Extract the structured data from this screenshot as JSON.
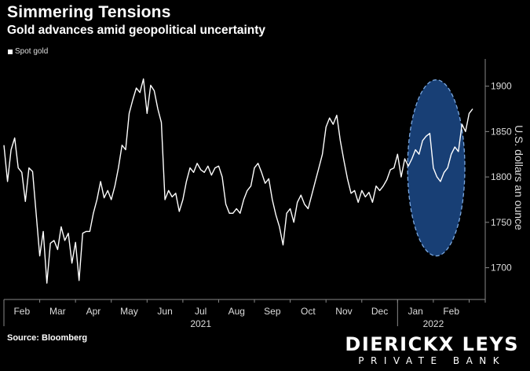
{
  "chart_data": {
    "type": "line",
    "title": "Simmering Tensions",
    "subtitle": "Gold advances amid geopolitical uncertainty",
    "ylabel": "U.S. dollars an ounce",
    "ylim": [
      1665,
      1930
    ],
    "yticks": [
      1700,
      1750,
      1800,
      1850,
      1900
    ],
    "xlim": [
      0,
      13.45
    ],
    "month_ticks": [
      {
        "label": "Feb",
        "x": 0.5
      },
      {
        "label": "Mar",
        "x": 1.5
      },
      {
        "label": "Apr",
        "x": 2.5
      },
      {
        "label": "May",
        "x": 3.5
      },
      {
        "label": "Jun",
        "x": 4.5
      },
      {
        "label": "Jul",
        "x": 5.5
      },
      {
        "label": "Aug",
        "x": 6.5
      },
      {
        "label": "Sep",
        "x": 7.5
      },
      {
        "label": "Oct",
        "x": 8.5
      },
      {
        "label": "Nov",
        "x": 9.5
      },
      {
        "label": "Dec",
        "x": 10.5
      },
      {
        "label": "Jan",
        "x": 11.5
      },
      {
        "label": "Feb",
        "x": 12.5
      }
    ],
    "year_labels": [
      {
        "label": "2021",
        "x": 5.5
      },
      {
        "label": "2022",
        "x": 12.0
      }
    ],
    "year_boundaries": [
      0,
      11
    ],
    "series": [
      {
        "name": "Spot gold",
        "points": [
          [
            0.0,
            1835
          ],
          [
            0.1,
            1795
          ],
          [
            0.2,
            1830
          ],
          [
            0.3,
            1843
          ],
          [
            0.4,
            1810
          ],
          [
            0.5,
            1805
          ],
          [
            0.6,
            1773
          ],
          [
            0.7,
            1810
          ],
          [
            0.8,
            1806
          ],
          [
            0.9,
            1760
          ],
          [
            1.0,
            1713
          ],
          [
            1.1,
            1740
          ],
          [
            1.2,
            1683
          ],
          [
            1.3,
            1727
          ],
          [
            1.4,
            1730
          ],
          [
            1.5,
            1720
          ],
          [
            1.6,
            1745
          ],
          [
            1.7,
            1730
          ],
          [
            1.8,
            1738
          ],
          [
            1.9,
            1705
          ],
          [
            2.0,
            1728
          ],
          [
            2.1,
            1686
          ],
          [
            2.2,
            1738
          ],
          [
            2.3,
            1740
          ],
          [
            2.4,
            1740
          ],
          [
            2.5,
            1760
          ],
          [
            2.6,
            1775
          ],
          [
            2.7,
            1795
          ],
          [
            2.8,
            1777
          ],
          [
            2.9,
            1785
          ],
          [
            3.0,
            1775
          ],
          [
            3.1,
            1790
          ],
          [
            3.2,
            1810
          ],
          [
            3.3,
            1835
          ],
          [
            3.4,
            1830
          ],
          [
            3.5,
            1870
          ],
          [
            3.6,
            1885
          ],
          [
            3.7,
            1898
          ],
          [
            3.8,
            1893
          ],
          [
            3.9,
            1908
          ],
          [
            4.0,
            1870
          ],
          [
            4.1,
            1901
          ],
          [
            4.2,
            1895
          ],
          [
            4.3,
            1875
          ],
          [
            4.4,
            1860
          ],
          [
            4.5,
            1775
          ],
          [
            4.6,
            1785
          ],
          [
            4.7,
            1778
          ],
          [
            4.8,
            1782
          ],
          [
            4.9,
            1762
          ],
          [
            5.0,
            1775
          ],
          [
            5.1,
            1795
          ],
          [
            5.2,
            1810
          ],
          [
            5.3,
            1805
          ],
          [
            5.4,
            1815
          ],
          [
            5.5,
            1808
          ],
          [
            5.6,
            1805
          ],
          [
            5.7,
            1812
          ],
          [
            5.8,
            1802
          ],
          [
            5.9,
            1810
          ],
          [
            6.0,
            1812
          ],
          [
            6.1,
            1800
          ],
          [
            6.2,
            1770
          ],
          [
            6.3,
            1760
          ],
          [
            6.4,
            1760
          ],
          [
            6.5,
            1765
          ],
          [
            6.6,
            1760
          ],
          [
            6.7,
            1775
          ],
          [
            6.8,
            1785
          ],
          [
            6.9,
            1790
          ],
          [
            7.0,
            1810
          ],
          [
            7.1,
            1815
          ],
          [
            7.2,
            1805
          ],
          [
            7.3,
            1793
          ],
          [
            7.4,
            1798
          ],
          [
            7.5,
            1775
          ],
          [
            7.6,
            1758
          ],
          [
            7.7,
            1745
          ],
          [
            7.8,
            1725
          ],
          [
            7.9,
            1760
          ],
          [
            8.0,
            1765
          ],
          [
            8.1,
            1750
          ],
          [
            8.2,
            1772
          ],
          [
            8.3,
            1780
          ],
          [
            8.4,
            1770
          ],
          [
            8.5,
            1765
          ],
          [
            8.6,
            1780
          ],
          [
            8.7,
            1795
          ],
          [
            8.8,
            1810
          ],
          [
            8.9,
            1825
          ],
          [
            9.0,
            1855
          ],
          [
            9.1,
            1865
          ],
          [
            9.2,
            1858
          ],
          [
            9.3,
            1868
          ],
          [
            9.4,
            1840
          ],
          [
            9.5,
            1818
          ],
          [
            9.6,
            1798
          ],
          [
            9.7,
            1782
          ],
          [
            9.8,
            1785
          ],
          [
            9.9,
            1772
          ],
          [
            10.0,
            1785
          ],
          [
            10.1,
            1778
          ],
          [
            10.2,
            1783
          ],
          [
            10.3,
            1772
          ],
          [
            10.4,
            1790
          ],
          [
            10.5,
            1785
          ],
          [
            10.6,
            1790
          ],
          [
            10.7,
            1797
          ],
          [
            10.8,
            1808
          ],
          [
            10.9,
            1810
          ],
          [
            11.0,
            1825
          ],
          [
            11.1,
            1800
          ],
          [
            11.2,
            1820
          ],
          [
            11.3,
            1812
          ],
          [
            11.4,
            1820
          ],
          [
            11.5,
            1830
          ],
          [
            11.6,
            1825
          ],
          [
            11.7,
            1840
          ],
          [
            11.8,
            1845
          ],
          [
            11.9,
            1848
          ],
          [
            12.0,
            1810
          ],
          [
            12.1,
            1800
          ],
          [
            12.2,
            1795
          ],
          [
            12.3,
            1805
          ],
          [
            12.4,
            1810
          ],
          [
            12.5,
            1825
          ],
          [
            12.6,
            1833
          ],
          [
            12.7,
            1828
          ],
          [
            12.8,
            1858
          ],
          [
            12.9,
            1850
          ],
          [
            13.0,
            1870
          ],
          [
            13.1,
            1875
          ]
        ]
      }
    ],
    "highlight_ellipse": {
      "x_center": 12.08,
      "y_center": 1810,
      "x_radius": 0.8,
      "y_radius": 97
    },
    "colors": {
      "line": "#ffffff",
      "highlight_fill": "#1c4a8a",
      "highlight_stroke": "#7aa8e0",
      "background": "#000000"
    }
  },
  "footer": {
    "source": "Source: Bloomberg",
    "logo_main": "DIERICKX LEYS",
    "logo_sub": "PRIVATE BANK"
  }
}
